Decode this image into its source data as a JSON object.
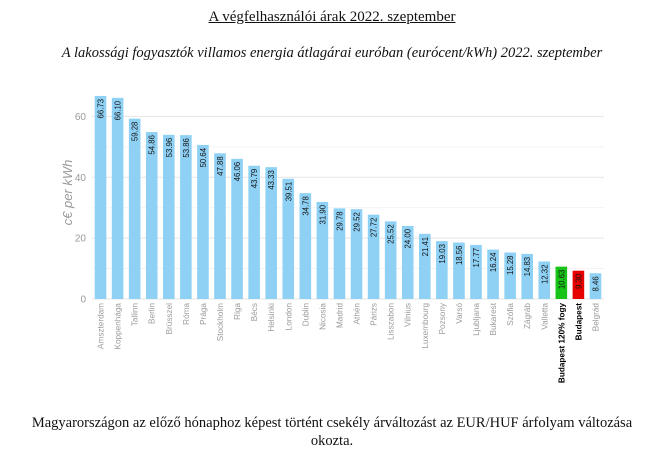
{
  "header": {
    "title": "A végfelhasználói árak 2022. szeptember"
  },
  "footer": {
    "note": "Magyarországon az előző hónaphoz képest történt csekély árváltozást az EUR/HUF árfolyam változása okozta."
  },
  "colors": {
    "default_bar": "#8fd1f5",
    "highlight_green": "#17c417",
    "highlight_red": "#e60000",
    "grid": "#e5e5e5"
  },
  "chart_data": {
    "type": "bar",
    "title": "A lakossági fogyasztók villamos energia átlagárai euróban (eurócent/kWh) 2022. szeptember",
    "xlabel": "",
    "ylabel": "c€ per kWh",
    "ylim": [
      0,
      70
    ],
    "yticks": [
      0,
      20,
      40,
      60
    ],
    "grid": true,
    "categories": [
      "Amszterdam",
      "Koppenhága",
      "Tallinn",
      "Berlin",
      "Brüsszel",
      "Róma",
      "Prága",
      "Stockholm",
      "Riga",
      "Bécs",
      "Helsinki",
      "London",
      "Dublin",
      "Nicosia",
      "Madrid",
      "Athén",
      "Párizs",
      "Lisszabon",
      "Vilnius",
      "Luxembourg",
      "Pozsony",
      "Varsó",
      "Ljubljana",
      "Bukarest",
      "Szófia",
      "Zágráb",
      "Valletta",
      "Budapest 120% fogy",
      "Budapest",
      "Belgrád"
    ],
    "values": [
      66.73,
      66.1,
      59.28,
      54.86,
      53.96,
      53.86,
      50.64,
      47.88,
      46.06,
      43.79,
      43.33,
      39.51,
      34.78,
      31.9,
      29.78,
      29.52,
      27.72,
      25.52,
      24.0,
      21.41,
      19.03,
      18.56,
      17.77,
      16.24,
      15.28,
      14.83,
      12.32,
      10.63,
      9.3,
      8.46
    ],
    "labels": [
      "66.73",
      "66.10",
      "59.28",
      "54.86",
      "53.96",
      "53.86",
      "50.64",
      "47.88",
      "46.06",
      "43.79",
      "43.33",
      "39.51",
      "34.78",
      "31.90",
      "29.78",
      "29.52",
      "27.72",
      "25.52",
      "24.00",
      "21.41",
      "19.03",
      "18.56",
      "17.77",
      "16.24",
      "15.28",
      "14.83",
      "12.32",
      "10.63",
      "9.30",
      "8.46"
    ],
    "highlight": {
      "Budapest 120% fogy": "green",
      "Budapest": "red"
    }
  }
}
